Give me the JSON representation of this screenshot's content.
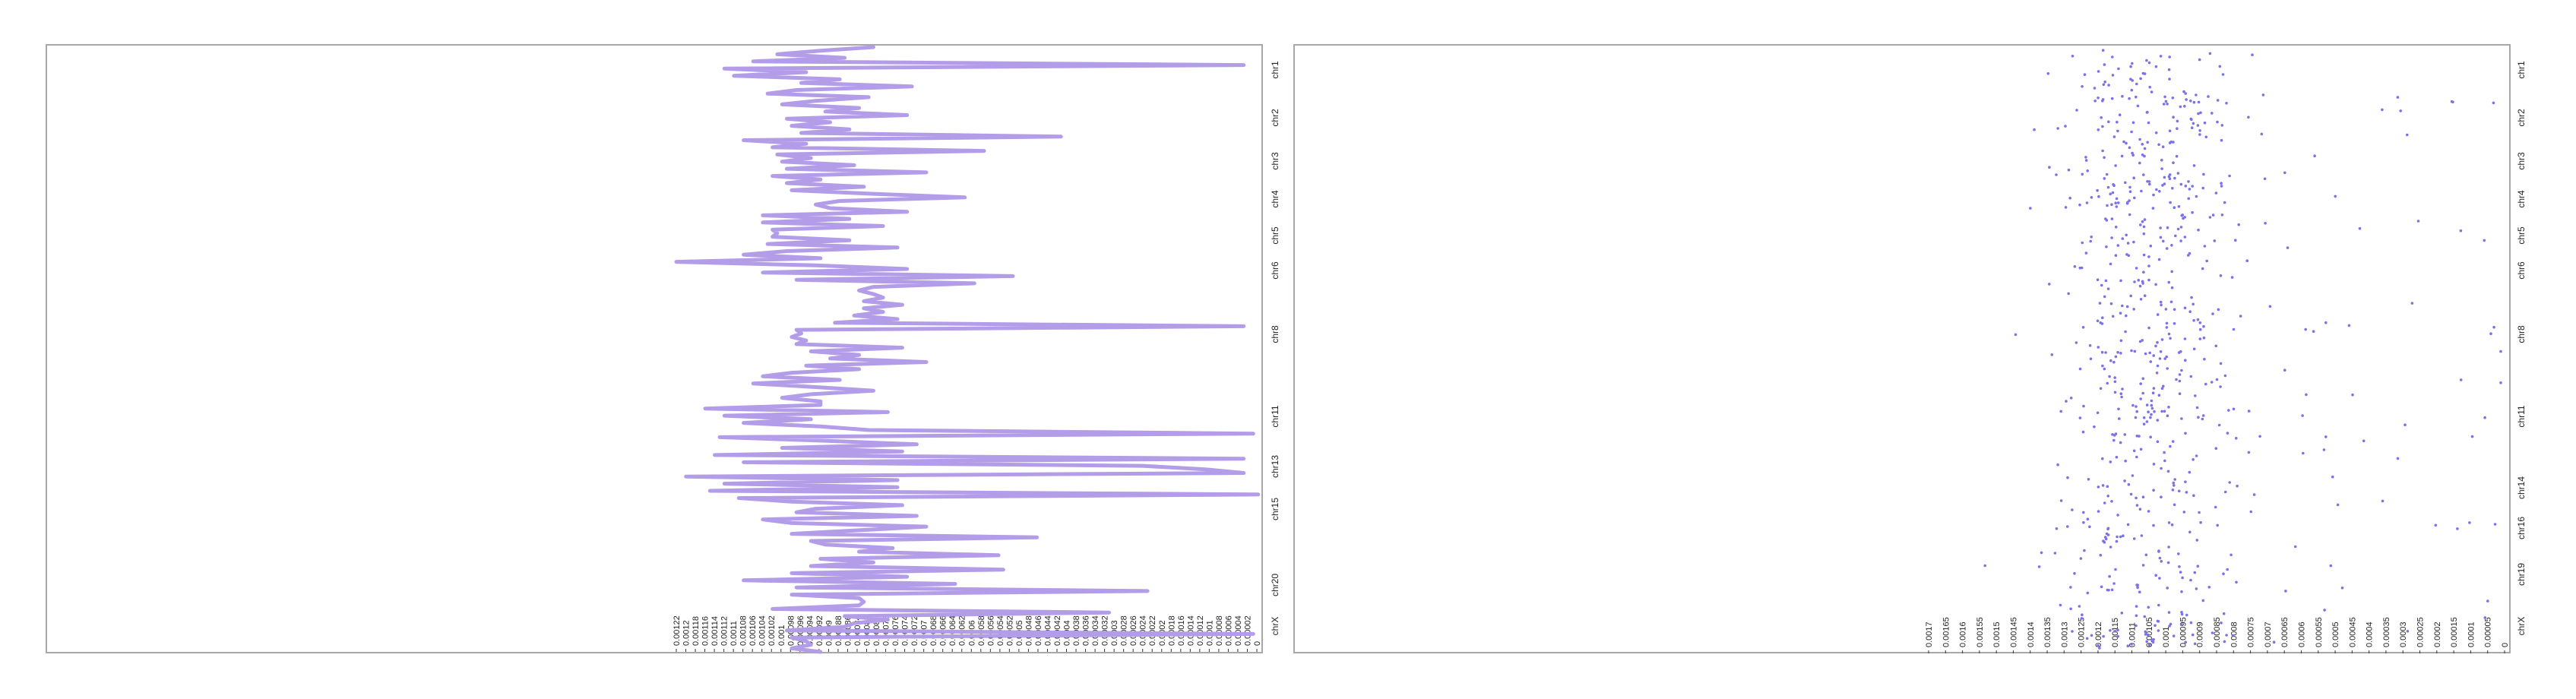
{
  "colors": {
    "line": "#b39ce8",
    "points": "#7b72e8",
    "frame": "#a8a8a8",
    "tick": "#333333"
  },
  "chart_data": [
    {
      "type": "line",
      "title": "",
      "orientation": "rotated",
      "value_axis_reversed": true,
      "ylim": [
        0,
        0.00122
      ],
      "chromosomes": [
        "chr1",
        "chr2",
        "chr3",
        "chr4",
        "chr5",
        "chr6",
        "chr8",
        "chr11",
        "chr13",
        "chr15",
        "chr20",
        "chrX"
      ],
      "ticks": [
        "0.00122",
        "0.0012",
        "0.00118",
        "0.00116",
        "0.00114",
        "0.00112",
        "0.0011",
        "0.00108",
        "0.00106",
        "0.00104",
        "0.00102",
        "0.001",
        "0.00098",
        "0.00096",
        "0.00094",
        "0.00092",
        "0.0009",
        "0.00088",
        "0.00086",
        "0.00084",
        "0.00082",
        "0.0008",
        "0.00078",
        "0.00076",
        "0.00074",
        "0.00072",
        "0.0007",
        "0.00068",
        "0.00066",
        "0.00064",
        "0.00062",
        "0.0006",
        "0.00058",
        "0.00056",
        "0.00054",
        "0.00052",
        "0.0005",
        "0.00048",
        "0.00046",
        "0.00044",
        "0.00042",
        "0.0004",
        "0.00038",
        "0.00036",
        "0.00034",
        "0.00032",
        "0.0003",
        "0.00028",
        "0.00026",
        "0.00024",
        "0.00022",
        "0.0002",
        "0.00018",
        "0.00016",
        "0.00014",
        "0.00012",
        "0.0001",
        "0.00008",
        "0.00006",
        "0.00004",
        "0.00002",
        "0"
      ],
      "values": [
        0.00081,
        0.00092,
        0.00101,
        0.00087,
        0.00106,
        4e-05,
        0.00112,
        0.00095,
        0.0011,
        0.00088,
        0.00096,
        0.00073,
        0.00097,
        0.00103,
        0.00082,
        0.00093,
        0.001,
        0.00084,
        0.00091,
        0.00074,
        0.00099,
        0.0009,
        0.00098,
        0.00086,
        0.00096,
        0.00042,
        0.00108,
        0.00095,
        0.00102,
        0.00058,
        0.00101,
        0.00094,
        0.001,
        0.00085,
        0.00099,
        0.0007,
        0.00102,
        0.00092,
        0.00099,
        0.00083,
        0.00098,
        0.00081,
        0.00062,
        0.00088,
        0.00093,
        0.0009,
        0.00074,
        0.00104,
        0.00086,
        0.00104,
        0.00079,
        0.00102,
        0.00101,
        0.00102,
        0.00086,
        0.00103,
        0.00076,
        0.00099,
        0.00108,
        0.00092,
        0.00122,
        0.00093,
        0.00074,
        0.00104,
        0.00052,
        0.00097,
        0.0006,
        0.00081,
        0.00084,
        0.00081,
        0.00079,
        0.00083,
        0.00075,
        0.00083,
        0.00079,
        0.00085,
        0.00076,
        0.00089,
        4e-05,
        0.00097,
        0.00096,
        0.00098,
        0.00095,
        0.00097,
        0.00075,
        0.00094,
        0.00084,
        0.0009,
        0.0007,
        0.00095,
        0.00084,
        0.00098,
        0.00104,
        0.00088,
        0.00106,
        0.00093,
        0.00081,
        0.00094,
        0.001,
        0.00092,
        0.00092,
        0.00116,
        0.00078,
        0.00112,
        0.00094,
        0.00108,
        0.00092,
        0.00082,
        2e-05,
        0.00113,
        0.00091,
        0.00072,
        0.001,
        0.00075,
        0.00114,
        4e-05,
        0.00108,
        0.00025,
        0.00012,
        4e-05,
        0.0012,
        0.00076,
        0.00112,
        0.00076,
        0.00115,
        1e-05,
        0.00109,
        0.00098,
        0.00075,
        0.00093,
        0.00097,
        0.00072,
        0.00104,
        0.00098,
        0.0007,
        0.00084,
        0.00098,
        0.00047,
        0.00094,
        0.00091,
        0.00077,
        0.00084,
        0.00055,
        0.00092,
        0.00081,
        0.00094,
        0.00054,
        0.00098,
        0.00074,
        0.00108,
        0.00064,
        0.00097,
        0.00024,
        0.00098,
        0.00084,
        0.00083,
        0.00084,
        0.00102,
        0.00032,
        0.00087,
        0.00078,
        0.00085,
        0.00087,
        0.00099,
        2e-05,
        0.00098,
        0.00095,
        0.00094,
        0.00098,
        0.00092
      ]
    },
    {
      "type": "scatter",
      "title": "",
      "orientation": "rotated",
      "value_axis_reversed": true,
      "ylim": [
        0,
        0.0017
      ],
      "chromosomes": [
        "chr1",
        "chr2",
        "chr3",
        "chr4",
        "chr5",
        "chr6",
        "chr8",
        "chr11",
        "chr14",
        "chr16",
        "chr19",
        "chrX"
      ],
      "ticks": [
        "0.0017",
        "0.00165",
        "0.0016",
        "0.00155",
        "0.0015",
        "0.00145",
        "0.0014",
        "0.00135",
        "0.0013",
        "0.00125",
        "0.0012",
        "0.00115",
        "0.0011",
        "0.00105",
        "0.001",
        "0.00095",
        "0.0009",
        "0.00085",
        "0.0008",
        "0.00075",
        "0.0007",
        "0.00065",
        "0.0006",
        "0.00055",
        "0.0005",
        "0.00045",
        "0.0004",
        "0.00035",
        "0.0003",
        "0.00025",
        "0.0002",
        "0.00015",
        "0.0001",
        "0.00005",
        "0"
      ]
    }
  ]
}
